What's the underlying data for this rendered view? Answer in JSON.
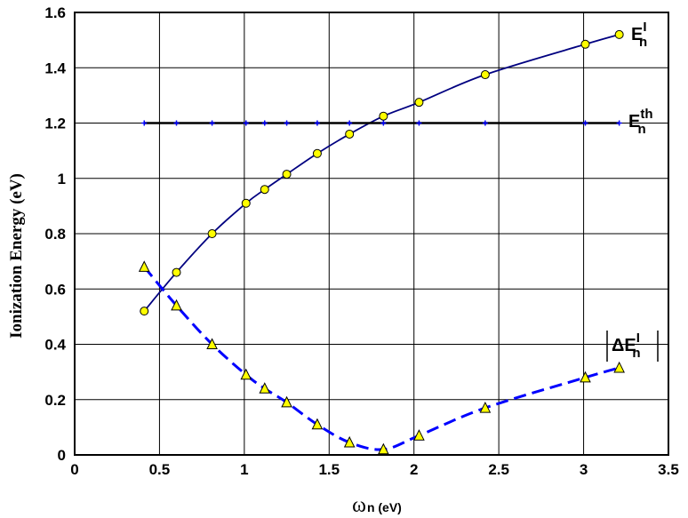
{
  "chart_data": {
    "type": "line",
    "title": "",
    "xlabel": {
      "main": "ω",
      "sub": "n (eV)"
    },
    "ylabel": "Ionization Energy (eV)",
    "xlim": [
      0,
      3.5
    ],
    "ylim": [
      0,
      1.6
    ],
    "x_ticks": [
      "0",
      "0.5",
      "1",
      "1.5",
      "2",
      "2.5",
      "3",
      "3.5"
    ],
    "y_ticks": [
      "0",
      "0.2",
      "0.4",
      "0.6",
      "0.8",
      "1",
      "1.2",
      "1.4",
      "1.6"
    ],
    "grid": true,
    "series": [
      {
        "name": {
          "base": "E",
          "sub": "n",
          "sup": "I"
        },
        "style": "solid",
        "marker": "circle",
        "color": "#000080",
        "marker_fill": "#ffff00",
        "x": [
          0.41,
          0.6,
          0.81,
          1.01,
          1.12,
          1.25,
          1.43,
          1.62,
          1.82,
          2.03,
          2.42,
          3.01,
          3.21
        ],
        "y": [
          0.52,
          0.66,
          0.8,
          0.91,
          0.96,
          1.015,
          1.09,
          1.16,
          1.225,
          1.275,
          1.375,
          1.485,
          1.52
        ]
      },
      {
        "name": {
          "base": "E",
          "sub": "n",
          "sup": "th"
        },
        "style": "solid",
        "marker": "plus",
        "color": "#000000",
        "marker_color": "#0000ff",
        "x": [
          0.41,
          0.6,
          0.81,
          1.01,
          1.12,
          1.25,
          1.43,
          1.62,
          1.82,
          2.03,
          2.42,
          3.01,
          3.21
        ],
        "y": [
          1.2,
          1.2,
          1.2,
          1.2,
          1.2,
          1.2,
          1.2,
          1.2,
          1.2,
          1.2,
          1.2,
          1.2,
          1.2
        ]
      },
      {
        "name": {
          "base": "ΔE",
          "sub": "n",
          "sup": "I"
        },
        "style": "dashed",
        "marker": "triangle",
        "color": "#0000ff",
        "marker_fill": "#ffff00",
        "x": [
          0.41,
          0.6,
          0.81,
          1.01,
          1.12,
          1.25,
          1.43,
          1.62,
          1.82,
          2.03,
          2.42,
          3.01,
          3.21
        ],
        "y": [
          0.68,
          0.54,
          0.4,
          0.29,
          0.24,
          0.19,
          0.11,
          0.045,
          0.02,
          0.07,
          0.17,
          0.28,
          0.315
        ]
      }
    ]
  }
}
